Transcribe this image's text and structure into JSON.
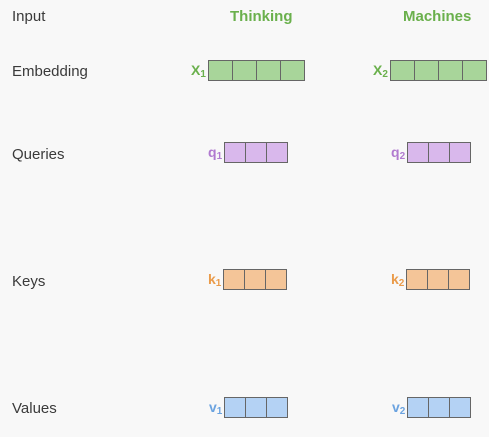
{
  "rows": {
    "input": "Input",
    "embedding": "Embedding",
    "queries": "Queries",
    "keys": "Keys",
    "values": "Values"
  },
  "words": [
    "Thinking",
    "Machines"
  ],
  "vectors": {
    "x1": {
      "label": "X",
      "sub": "1"
    },
    "x2": {
      "label": "X",
      "sub": "2"
    },
    "q1": {
      "label": "q",
      "sub": "1"
    },
    "q2": {
      "label": "q",
      "sub": "2"
    },
    "k1": {
      "label": "k",
      "sub": "1"
    },
    "k2": {
      "label": "k",
      "sub": "2"
    },
    "v1": {
      "label": "v",
      "sub": "1"
    },
    "v2": {
      "label": "v",
      "sub": "2"
    }
  },
  "colors": {
    "word": "#6ab04c",
    "embedding_fill": "#a8d59a",
    "embedding_text": "#6ab04c",
    "query_fill": "#d9b8ec",
    "query_text": "#b17ad0",
    "key_fill": "#f4c598",
    "key_text": "#ea9b4a",
    "value_fill": "#b4d2f4",
    "value_text": "#6ba3e0"
  }
}
